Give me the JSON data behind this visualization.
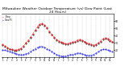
{
  "title": "Milwaukee Weather Outdoor Temperature (vs) Dew Point (Last 24 Hours)",
  "title_fontsize": 3.2,
  "temp_color": "#ff0000",
  "dewpoint_color": "#0000ff",
  "outdoor_color": "#000000",
  "grid_color": "#aaaaaa",
  "background_color": "#ffffff",
  "ylim": [
    10,
    70
  ],
  "yticks": [
    20,
    30,
    40,
    50,
    60
  ],
  "ytick_labels": [
    "20",
    "30",
    "40",
    "50",
    "60"
  ],
  "n_points": 48,
  "temp_values": [
    28,
    26,
    24,
    22,
    21,
    20,
    20,
    21,
    23,
    26,
    30,
    34,
    38,
    43,
    48,
    53,
    56,
    57,
    55,
    51,
    46,
    42,
    38,
    35,
    33,
    31,
    30,
    29,
    29,
    30,
    31,
    32,
    34,
    35,
    34,
    32,
    30,
    29,
    28,
    27,
    28,
    30,
    33,
    36,
    37,
    36,
    34,
    32
  ],
  "dewpoint_values": [
    20,
    20,
    19,
    18,
    17,
    16,
    15,
    14,
    14,
    14,
    15,
    16,
    18,
    20,
    22,
    24,
    25,
    25,
    24,
    22,
    20,
    18,
    16,
    14,
    13,
    12,
    12,
    12,
    13,
    14,
    14,
    15,
    16,
    16,
    15,
    14,
    13,
    13,
    13,
    14,
    16,
    18,
    20,
    21,
    21,
    20,
    19,
    18
  ],
  "outdoor_values": [
    27,
    25,
    23,
    21,
    20,
    19,
    19,
    20,
    22,
    25,
    29,
    33,
    37,
    42,
    47,
    52,
    55,
    56,
    54,
    50,
    45,
    41,
    37,
    34,
    32,
    30,
    29,
    28,
    28,
    29,
    30,
    31,
    33,
    34,
    33,
    31,
    29,
    28,
    27,
    26,
    27,
    29,
    32,
    35,
    36,
    35,
    33,
    31
  ],
  "legend_temp": "Temp",
  "legend_dew": "Dew Pt"
}
